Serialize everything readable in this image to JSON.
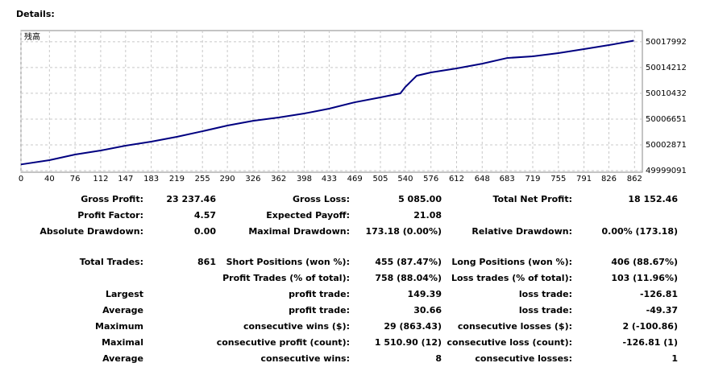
{
  "header": {
    "title": "Details:"
  },
  "chart_data": {
    "type": "line",
    "xlim": [
      0,
      873
    ],
    "ylim": [
      49998857,
      50019630
    ],
    "xticks": [
      0,
      40,
      76,
      112,
      147,
      183,
      219,
      255,
      290,
      326,
      362,
      398,
      433,
      469,
      505,
      540,
      576,
      612,
      648,
      683,
      719,
      755,
      791,
      826,
      862
    ],
    "yticks": [
      49999091,
      50002871,
      50006651,
      50010432,
      50014212,
      50017992
    ],
    "grid": true,
    "x": [
      0,
      40,
      76,
      112,
      147,
      183,
      219,
      255,
      290,
      326,
      362,
      398,
      433,
      469,
      505,
      533,
      540,
      556,
      576,
      612,
      648,
      683,
      719,
      755,
      791,
      826,
      861
    ],
    "series": [
      {
        "name": "残高",
        "color": "#000080",
        "values": [
          50000000,
          50000625,
          50001450,
          50002040,
          50002750,
          50003340,
          50004050,
          50004870,
          50005700,
          50006400,
          50006880,
          50007470,
          50008180,
          50009120,
          50009830,
          50010420,
          50011360,
          50013010,
          50013490,
          50014080,
          50014780,
          50015610,
          50015850,
          50016320,
          50016910,
          50017500,
          50018150
        ]
      }
    ]
  },
  "table": {
    "rows": [
      [
        "Gross Profit:",
        "23 237.46",
        "Gross Loss:",
        "5 085.00",
        "Total Net Profit:",
        "18 152.46"
      ],
      [
        "Profit Factor:",
        "4.57",
        "Expected Payoff:",
        "21.08",
        null,
        null
      ],
      [
        "Absolute Drawdown:",
        "0.00",
        "Maximal Drawdown:",
        "173.18 (0.00%)",
        "Relative Drawdown:",
        "0.00% (173.18)"
      ],
      [
        "Total Trades:",
        "861",
        "Short Positions (won %):",
        "455 (87.47%)",
        "Long Positions (won %):",
        "406 (88.67%)"
      ],
      [
        null,
        null,
        "Profit Trades (% of total):",
        "758 (88.04%)",
        "Loss trades (% of total):",
        "103 (11.96%)"
      ],
      [
        "Largest",
        null,
        "profit trade:",
        "149.39",
        "loss trade:",
        "-126.81"
      ],
      [
        "Average",
        null,
        "profit trade:",
        "30.66",
        "loss trade:",
        "-49.37"
      ],
      [
        "Maximum",
        null,
        "consecutive wins ($):",
        "29 (863.43)",
        "consecutive losses ($):",
        "2 (-100.86)"
      ],
      [
        "Maximal",
        null,
        "consecutive profit (count):",
        "1 510.90 (12)",
        "consecutive loss (count):",
        "-126.81 (1)"
      ],
      [
        "Average",
        null,
        "consecutive wins:",
        "8",
        "consecutive losses:",
        "1"
      ]
    ]
  }
}
